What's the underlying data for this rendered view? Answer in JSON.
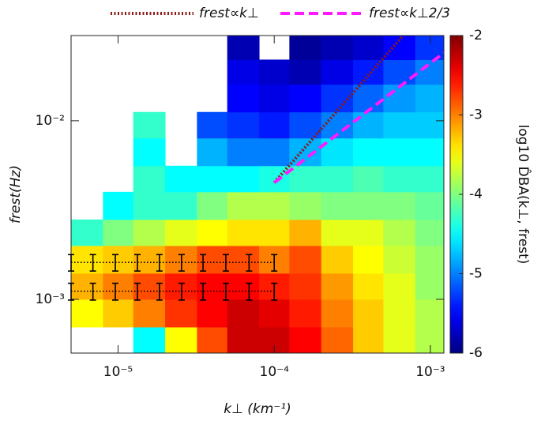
{
  "chart_data": {
    "type": "heatmap",
    "xlabel": "k⊥ (km⁻¹)",
    "ylabel": "frest(Hz)",
    "colorbar_label": "log10 D̂BA(k⊥, frest)",
    "xscale": "log",
    "yscale": "log",
    "xlim": [
      5e-06,
      0.00122
    ],
    "ylim": [
      0.0005,
      0.03
    ],
    "xticks": [
      {
        "value": 1e-05,
        "label": "10⁻⁵"
      },
      {
        "value": 0.0001,
        "label": "10⁻⁴"
      },
      {
        "value": 0.001,
        "label": "10⁻³"
      }
    ],
    "yticks": [
      {
        "value": 0.001,
        "label": "10⁻³"
      },
      {
        "value": 0.01,
        "label": "10⁻²"
      }
    ],
    "colormap": "jet",
    "clim": [
      -6,
      -2
    ],
    "cticks": [
      -2,
      -3,
      -4,
      -5,
      -6
    ],
    "heatmap": {
      "x_edges": [
        5e-06,
        8e-06,
        1.25e-05,
        2e-05,
        3.2e-05,
        5e-05,
        8e-05,
        0.000125,
        0.0002,
        0.00032,
        0.0005,
        0.0008,
        0.00122
      ],
      "y_edges": [
        0.0005,
        0.0007,
        0.001,
        0.0014,
        0.002,
        0.0028,
        0.004,
        0.0056,
        0.008,
        0.0112,
        0.016,
        0.022,
        0.03
      ],
      "z": [
        [
          null,
          null,
          -4.5,
          -3.5,
          -2.8,
          -2.3,
          -2.3,
          -2.5,
          -2.9,
          -3.3,
          -3.6,
          -3.8
        ],
        [
          -3.5,
          -3.3,
          -3.0,
          -2.7,
          -2.5,
          -2.3,
          -2.4,
          -2.6,
          -3.0,
          -3.3,
          -3.6,
          -3.8
        ],
        [
          -3.2,
          -3.0,
          -2.8,
          -2.6,
          -2.5,
          -2.5,
          -2.6,
          -2.7,
          -3.1,
          -3.4,
          -3.6,
          -3.9
        ],
        [
          -3.4,
          -3.3,
          -3.2,
          -3.0,
          -2.8,
          -2.8,
          -3.0,
          -2.8,
          -3.3,
          -3.5,
          -3.7,
          -3.9
        ],
        [
          -4.3,
          -4.0,
          -3.8,
          -3.6,
          -3.5,
          -3.4,
          -3.4,
          -3.2,
          -3.6,
          -3.6,
          -3.8,
          -4.0
        ],
        [
          null,
          -4.5,
          -4.3,
          -4.3,
          -4.0,
          -3.8,
          -3.8,
          -3.9,
          -4.0,
          -4.0,
          -4.0,
          -4.1
        ],
        [
          null,
          null,
          -4.3,
          -4.5,
          -4.5,
          -4.5,
          -4.4,
          -4.3,
          -4.3,
          -4.2,
          -4.3,
          -4.3
        ],
        [
          null,
          null,
          -4.5,
          null,
          -4.8,
          -5.0,
          -5.0,
          -4.8,
          -4.6,
          -4.5,
          -4.5,
          -4.5
        ],
        [
          null,
          null,
          -4.3,
          null,
          -5.2,
          -5.3,
          -5.4,
          -5.2,
          -5.0,
          -4.8,
          -4.7,
          -4.7
        ],
        [
          null,
          null,
          null,
          null,
          null,
          -5.5,
          -5.6,
          -5.5,
          -5.3,
          -5.1,
          -4.9,
          -4.8
        ],
        [
          null,
          null,
          null,
          null,
          null,
          -5.6,
          -5.7,
          -5.8,
          -5.6,
          -5.4,
          -5.2,
          -5.0
        ],
        [
          null,
          null,
          null,
          null,
          null,
          -5.8,
          null,
          -5.9,
          -5.8,
          -5.7,
          -5.5,
          -5.3
        ]
      ]
    },
    "series": [
      {
        "name": "frest∝k⊥",
        "color": "#8b1a1a",
        "style": "dotted",
        "x": [
          0.0001,
          0.00067
        ],
        "values": [
          0.0045,
          0.03
        ]
      },
      {
        "name": "frest∝k⊥2/3",
        "color": "#ff1aff",
        "style": "dashed",
        "x": [
          0.0001,
          0.00122
        ],
        "values": [
          0.0045,
          0.024
        ]
      }
    ],
    "errorbars": [
      {
        "color": "#000000",
        "x": [
          5e-06,
          6.9e-06,
          9.6e-06,
          1.33e-05,
          1.84e-05,
          2.55e-05,
          3.5e-05,
          4.9e-05,
          6.9e-05,
          0.0001
        ],
        "values": [
          0.00161,
          0.00161,
          0.00161,
          0.00161,
          0.00161,
          0.00161,
          0.00161,
          0.00161,
          0.00161,
          0.00161
        ],
        "errors": [
          0.00017,
          0.00017,
          0.00017,
          0.00017,
          0.00017,
          0.00017,
          0.00017,
          0.00017,
          0.00017,
          0.00017
        ]
      },
      {
        "color": "#000000",
        "x": [
          5e-06,
          6.9e-06,
          9.6e-06,
          1.33e-05,
          1.84e-05,
          2.55e-05,
          3.5e-05,
          4.9e-05,
          6.9e-05,
          0.0001
        ],
        "values": [
          0.00111,
          0.00111,
          0.00111,
          0.00111,
          0.00111,
          0.00111,
          0.00111,
          0.00111,
          0.00111,
          0.00111
        ],
        "errors": [
          0.00012,
          0.00012,
          0.00012,
          0.00012,
          0.00012,
          0.00012,
          0.00012,
          0.00012,
          0.00012,
          0.00012
        ]
      }
    ]
  }
}
